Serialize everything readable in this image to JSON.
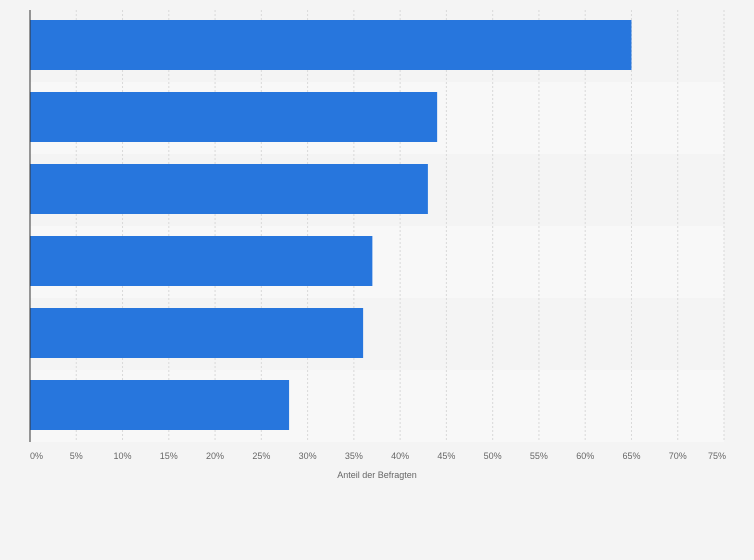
{
  "chart_data": {
    "type": "bar",
    "orientation": "horizontal",
    "categories": [
      "",
      "",
      "",
      "",
      "",
      ""
    ],
    "values": [
      65,
      44,
      43,
      37,
      36,
      28
    ],
    "xlabel": "Anteil der Befragten",
    "ylabel": "",
    "xlim": [
      0,
      75
    ],
    "x_ticks": [
      "0%",
      "5%",
      "10%",
      "15%",
      "20%",
      "25%",
      "30%",
      "35%",
      "40%",
      "45%",
      "50%",
      "55%",
      "60%",
      "65%",
      "70%",
      "75%"
    ],
    "grid": true,
    "legend": "none",
    "colors": {
      "bar": "#2776dd",
      "band_odd": "#f4f4f4",
      "band_even": "#f8f8f8",
      "grid": "#d9d9d9",
      "axis": "#333333",
      "background": "#f4f4f4"
    }
  }
}
